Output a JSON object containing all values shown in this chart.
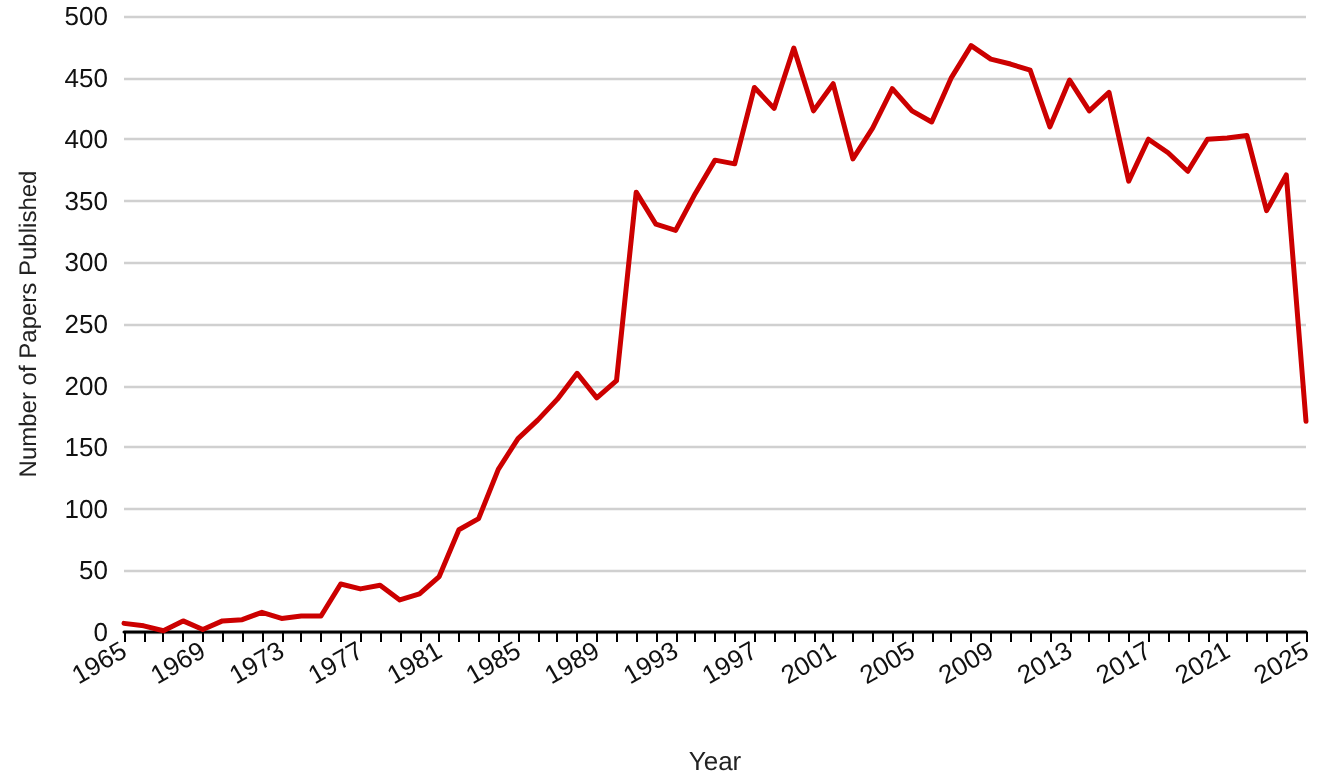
{
  "chart_data": {
    "type": "line",
    "xlabel": "Year",
    "ylabel": "Number of Papers Published",
    "x": [
      1965,
      1966,
      1967,
      1968,
      1969,
      1970,
      1971,
      1972,
      1973,
      1974,
      1975,
      1976,
      1977,
      1978,
      1979,
      1980,
      1981,
      1982,
      1983,
      1984,
      1985,
      1986,
      1987,
      1988,
      1989,
      1990,
      1991,
      1992,
      1993,
      1994,
      1995,
      1996,
      1997,
      1998,
      1999,
      2000,
      2001,
      2002,
      2003,
      2004,
      2005,
      2006,
      2007,
      2008,
      2009,
      2010,
      2011,
      2012,
      2013,
      2014,
      2015,
      2016,
      2017,
      2018,
      2019,
      2020,
      2021,
      2022,
      2023,
      2024,
      2025
    ],
    "series": [
      {
        "color": "#cc0000",
        "values": [
          7,
          5,
          1,
          9,
          2,
          9,
          10,
          16,
          11,
          13,
          13,
          39,
          35,
          38,
          26,
          31,
          45,
          83,
          92,
          132,
          157,
          172,
          189,
          210,
          190,
          204,
          357,
          331,
          326,
          356,
          383,
          380,
          442,
          425,
          474,
          423,
          445,
          384,
          409,
          441,
          423,
          414,
          450,
          476,
          465,
          461,
          456,
          410,
          448,
          423,
          438,
          366,
          400,
          389,
          374,
          400,
          401,
          403,
          342,
          371,
          171
        ]
      }
    ],
    "xlim": [
      1965,
      2025
    ],
    "xticks": [
      1965,
      1969,
      1973,
      1977,
      1981,
      1985,
      1989,
      1993,
      1997,
      2001,
      2005,
      2009,
      2013,
      2017,
      2021,
      2025
    ],
    "ylim": [
      0,
      500
    ],
    "yticks": [
      0,
      50,
      100,
      150,
      200,
      250,
      300,
      350,
      400,
      450,
      500
    ],
    "grid": "y",
    "marker": "none",
    "line_style": "solid"
  }
}
